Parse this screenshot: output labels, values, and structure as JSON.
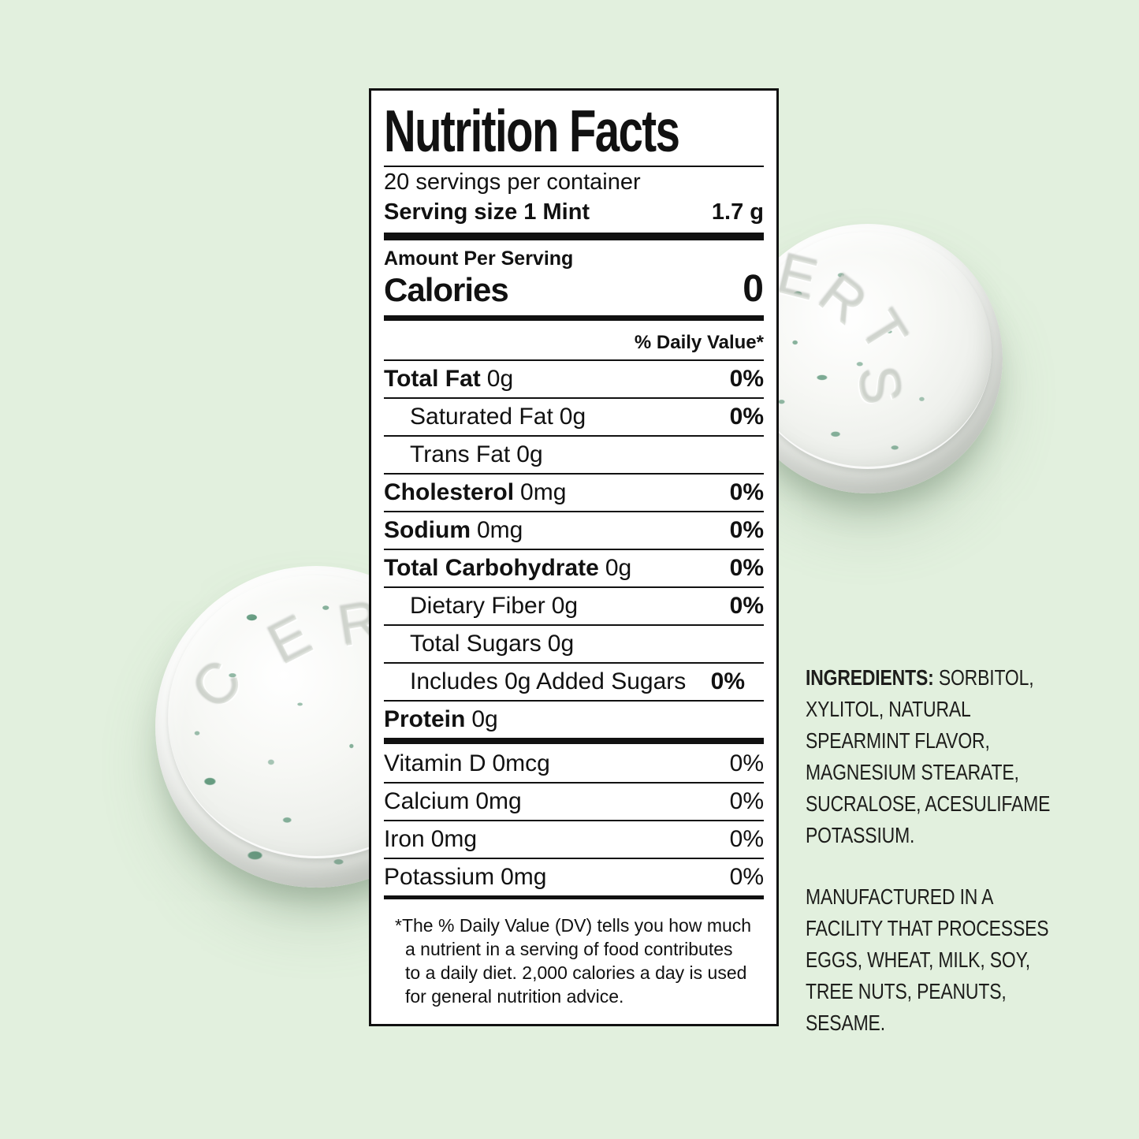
{
  "page": {
    "background_color": "#e2f0de"
  },
  "label": {
    "title": "Nutrition Facts",
    "servings_per_container": "20 servings per container",
    "serving_size": {
      "label": "Serving size 1 Mint",
      "value": "1.7 g"
    },
    "amount_per_serving": "Amount Per Serving",
    "calories": {
      "label": "Calories",
      "value": "0"
    },
    "daily_value_header": "% Daily Value*",
    "rows": [
      {
        "name": "Total Fat",
        "amount": "0g",
        "dv": "0%"
      },
      {
        "name": "Saturated Fat",
        "amount": "0g",
        "dv": "0%"
      },
      {
        "name": "Trans Fat",
        "amount": "0g",
        "dv": ""
      },
      {
        "name": "Cholesterol",
        "amount": "0mg",
        "dv": "0%"
      },
      {
        "name": "Sodium",
        "amount": "0mg",
        "dv": "0%"
      },
      {
        "name": "Total Carbohydrate",
        "amount": "0g",
        "dv": "0%"
      },
      {
        "name": "Dietary Fiber",
        "amount": "0g",
        "dv": "0%"
      },
      {
        "name": "Total Sugars",
        "amount": "0g",
        "dv": ""
      },
      {
        "name": "Includes 0g Added Sugars",
        "amount": "",
        "dv": "0%"
      },
      {
        "name": "Protein",
        "amount": "0g",
        "dv": ""
      }
    ],
    "vitamins": [
      {
        "name": "Vitamin D",
        "amount": "0mcg",
        "dv": "0%"
      },
      {
        "name": "Calcium",
        "amount": "0mg",
        "dv": "0%"
      },
      {
        "name": "Iron",
        "amount": "0mg",
        "dv": "0%"
      },
      {
        "name": "Potassium",
        "amount": "0mg",
        "dv": "0%"
      }
    ],
    "footnote_lines": [
      "*The % Daily Value (DV) tells you how much",
      "a nutrient in a serving of food contributes",
      "to a daily diet. 2,000 calories a day is used",
      "for general nutrition advice."
    ]
  },
  "side_text": {
    "ingredients_heading": "INGREDIENTS:",
    "ingredients_lines": [
      "SORBITOL,",
      "XYLITOL, NATURAL",
      "SPEARMINT FLAVOR,",
      "MAGNESIUM STEARATE,",
      "SUCRALOSE, ACESULIFAME",
      "POTASSIUM."
    ],
    "allergen_lines": [
      "MANUFACTURED IN A",
      "FACILITY THAT PROCESSES",
      "EGGS, WHEAT, MILK, SOY,",
      "TREE NUTS, PEANUTS,",
      "SESAME."
    ]
  },
  "mints": {
    "speckle_color": "#2a7651",
    "brand_letters_left": [
      "C",
      "E",
      "R"
    ],
    "brand_letters_right": [
      "E",
      "R",
      "T",
      "S"
    ]
  }
}
